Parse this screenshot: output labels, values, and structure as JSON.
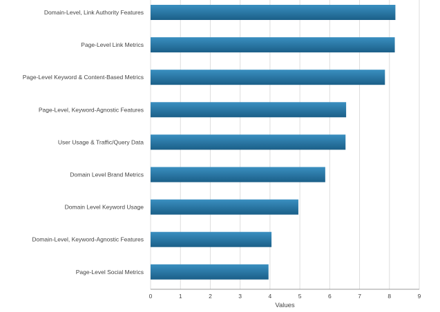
{
  "chart_data": {
    "type": "bar",
    "orientation": "horizontal",
    "categories": [
      "Domain-Level, Link Authority Features",
      "Page-Level Link Metrics",
      "Page-Level Keyword & Content-Based Metrics",
      "Page-Level, Keyword-Agnostic Features",
      "User Usage & Traffic/Query Data",
      "Domain Level Brand Metrics",
      "Domain Level Keyword Usage",
      "Domain-Level, Keyword-Agnostic Features",
      "Page-Level Social Metrics"
    ],
    "values": [
      8.2,
      8.18,
      7.85,
      6.55,
      6.53,
      5.85,
      4.95,
      4.05,
      3.95
    ],
    "xlabel": "Values",
    "ylabel": "",
    "title": "",
    "xlim": [
      0,
      9
    ],
    "xticks": [
      "0",
      "1",
      "2",
      "3",
      "4",
      "5",
      "6",
      "7",
      "8",
      "9"
    ],
    "grid": true,
    "colors": {
      "bar_top": "#3a8fc0",
      "bar_bottom": "#1b5f88",
      "grid": "#dddddd",
      "axis": "#999999"
    }
  }
}
